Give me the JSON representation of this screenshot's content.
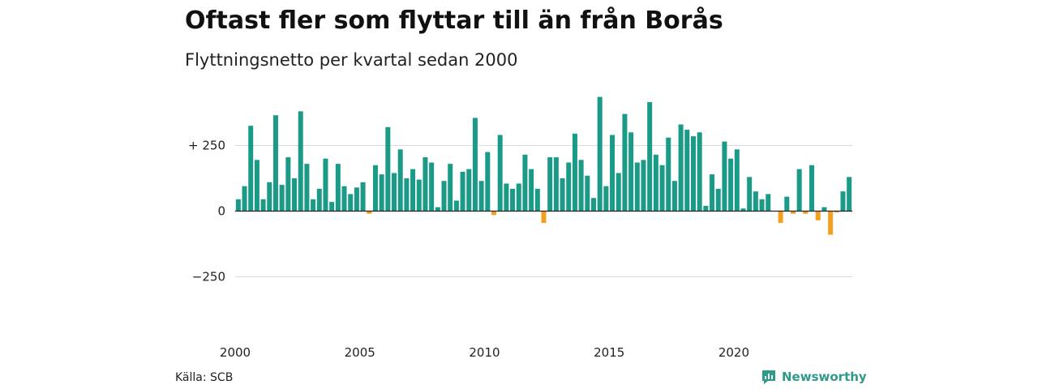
{
  "header": {
    "title": "Oftast fler som flyttar till än från Borås",
    "subtitle": "Flyttningsnetto per kvartal sedan 2000"
  },
  "footer": {
    "source": "Källa: SCB",
    "brand": "Newsworthy",
    "brand_icon": "chart-bubble-icon"
  },
  "colors": {
    "positive": "#1a9a87",
    "negative": "#f2a01e",
    "grid": "#d9d9d9",
    "zero_line": "#222222",
    "brand": "#2e9a87"
  },
  "chart_data": {
    "type": "bar",
    "title": "Oftast fler som flyttar till än från Borås",
    "subtitle": "Flyttningsnetto per kvartal sedan 2000",
    "xlabel": "",
    "ylabel": "",
    "ylim": [
      -400,
      450
    ],
    "yticks": [
      {
        "value": 250,
        "label": "+ 250"
      },
      {
        "value": 0,
        "label": "0"
      },
      {
        "value": -250,
        "label": "−250"
      }
    ],
    "xticks": [
      {
        "index": 0,
        "label": "2000"
      },
      {
        "index": 20,
        "label": "2005"
      },
      {
        "index": 40,
        "label": "2010"
      },
      {
        "index": 60,
        "label": "2015"
      },
      {
        "index": 80,
        "label": "2020"
      }
    ],
    "grid": true,
    "legend": "none",
    "start": "2000 Q1",
    "values": [
      45,
      95,
      325,
      195,
      45,
      110,
      365,
      100,
      205,
      125,
      380,
      180,
      45,
      85,
      200,
      35,
      180,
      95,
      65,
      90,
      110,
      -10,
      175,
      140,
      320,
      145,
      235,
      125,
      160,
      120,
      205,
      185,
      15,
      115,
      180,
      40,
      150,
      160,
      355,
      115,
      225,
      -15,
      290,
      105,
      85,
      105,
      215,
      160,
      85,
      -45,
      205,
      205,
      125,
      185,
      295,
      195,
      135,
      50,
      435,
      95,
      290,
      145,
      370,
      300,
      185,
      195,
      415,
      215,
      175,
      280,
      115,
      330,
      310,
      285,
      300,
      20,
      140,
      85,
      265,
      200,
      235,
      10,
      130,
      75,
      45,
      65,
      0,
      -45,
      55,
      -10,
      160,
      -10,
      175,
      -35,
      15,
      -90,
      -5,
      75,
      130
    ]
  }
}
